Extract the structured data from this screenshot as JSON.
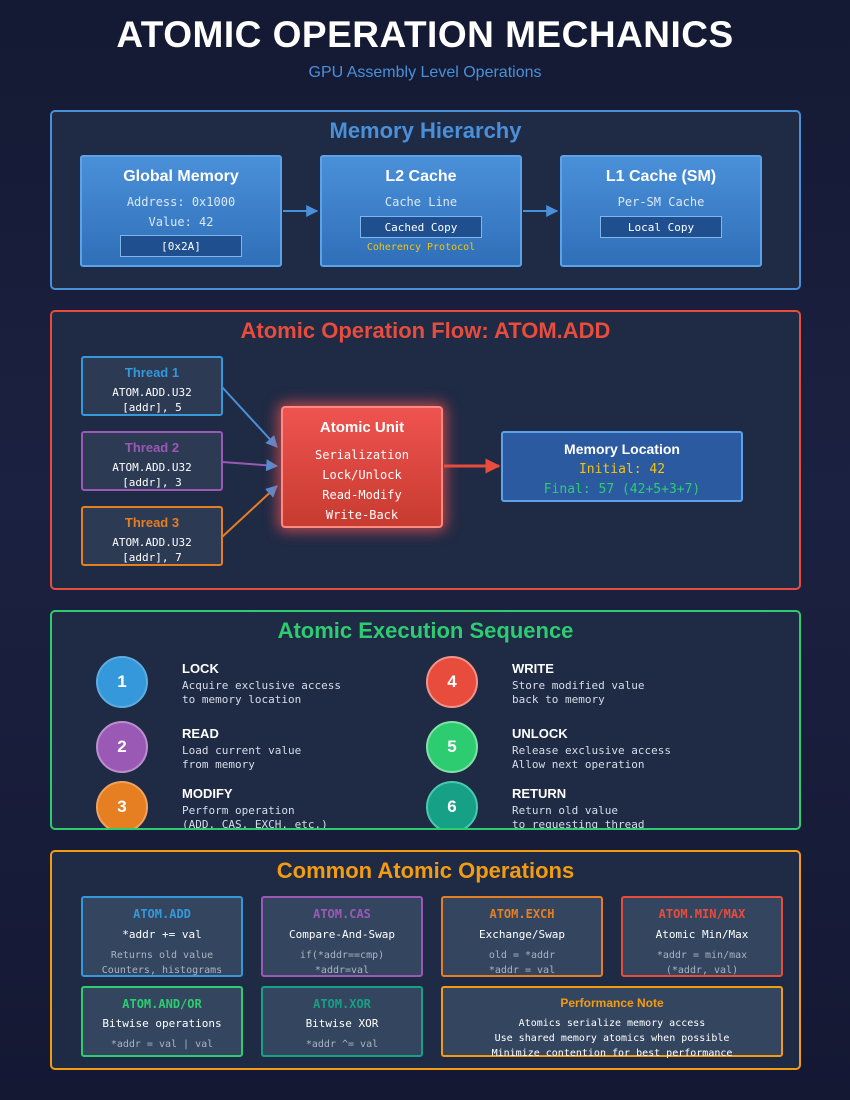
{
  "header": {
    "title": "ATOMIC OPERATION MECHANICS",
    "subtitle": "GPU Assembly Level Operations"
  },
  "colors": {
    "blue": "#4a90d9",
    "red": "#e74c3c",
    "green": "#2ecc71",
    "orange": "#f39c12",
    "purple": "#9b59b6",
    "teal": "#16a085",
    "yellow": "#f1c40f"
  },
  "memory_hierarchy": {
    "title": "Memory Hierarchy",
    "global": {
      "title": "Global Memory",
      "line1": "Address: 0x1000",
      "line2": "Value: 42",
      "chip": "[0x2A]"
    },
    "l2": {
      "title": "L2 Cache",
      "line1": "Cache Line",
      "chip": "Cached Copy",
      "note": "Coherency Protocol"
    },
    "l1": {
      "title": "L1 Cache (SM)",
      "line1": "Per-SM Cache",
      "chip": "Local Copy"
    }
  },
  "flow": {
    "title": "Atomic Operation Flow: ATOM.ADD",
    "threads": [
      {
        "name": "Thread 1",
        "line1": "ATOM.ADD.U32",
        "line2": "[addr], 5"
      },
      {
        "name": "Thread 2",
        "line1": "ATOM.ADD.U32",
        "line2": "[addr], 3"
      },
      {
        "name": "Thread 3",
        "line1": "ATOM.ADD.U32",
        "line2": "[addr], 7"
      }
    ],
    "unit": {
      "title": "Atomic Unit",
      "lines": [
        "Serialization",
        "Lock/Unlock",
        "Read-Modify",
        "Write-Back"
      ]
    },
    "memory_location": {
      "title": "Memory Location",
      "initial": "Initial: 42",
      "final": "Final: 57 (42+5+3+7)"
    }
  },
  "sequence": {
    "title": "Atomic Execution Sequence",
    "steps": [
      {
        "num": "1",
        "label": "LOCK",
        "desc": "Acquire exclusive access\nto memory location"
      },
      {
        "num": "2",
        "label": "READ",
        "desc": "Load current value\nfrom memory"
      },
      {
        "num": "3",
        "label": "MODIFY",
        "desc": "Perform operation\n(ADD, CAS, EXCH, etc.)"
      },
      {
        "num": "4",
        "label": "WRITE",
        "desc": "Store modified value\nback to memory"
      },
      {
        "num": "5",
        "label": "UNLOCK",
        "desc": "Release exclusive access\nAllow next operation"
      },
      {
        "num": "6",
        "label": "RETURN",
        "desc": "Return old value\nto requesting thread"
      }
    ]
  },
  "ops": {
    "title": "Common Atomic Operations",
    "items": [
      {
        "name": "ATOM.ADD",
        "desc": "*addr += val",
        "detail1": "Returns old value",
        "detail2": "Counters, histograms"
      },
      {
        "name": "ATOM.CAS",
        "desc": "Compare-And-Swap",
        "detail1": "if(*addr==cmp)",
        "detail2": "*addr=val"
      },
      {
        "name": "ATOM.EXCH",
        "desc": "Exchange/Swap",
        "detail1": "old = *addr",
        "detail2": "*addr = val"
      },
      {
        "name": "ATOM.MIN/MAX",
        "desc": "Atomic Min/Max",
        "detail1": "*addr = min/max",
        "detail2": "(*addr, val)"
      },
      {
        "name": "ATOM.AND/OR",
        "desc": "Bitwise operations",
        "detail1": "*addr = val | val"
      },
      {
        "name": "ATOM.XOR",
        "desc": "Bitwise XOR",
        "detail1": "*addr ^= val"
      }
    ],
    "note": {
      "title": "Performance Note",
      "lines": [
        "Atomics serialize memory access",
        "Use shared memory atomics when possible",
        "Minimize contention for best performance"
      ]
    }
  }
}
